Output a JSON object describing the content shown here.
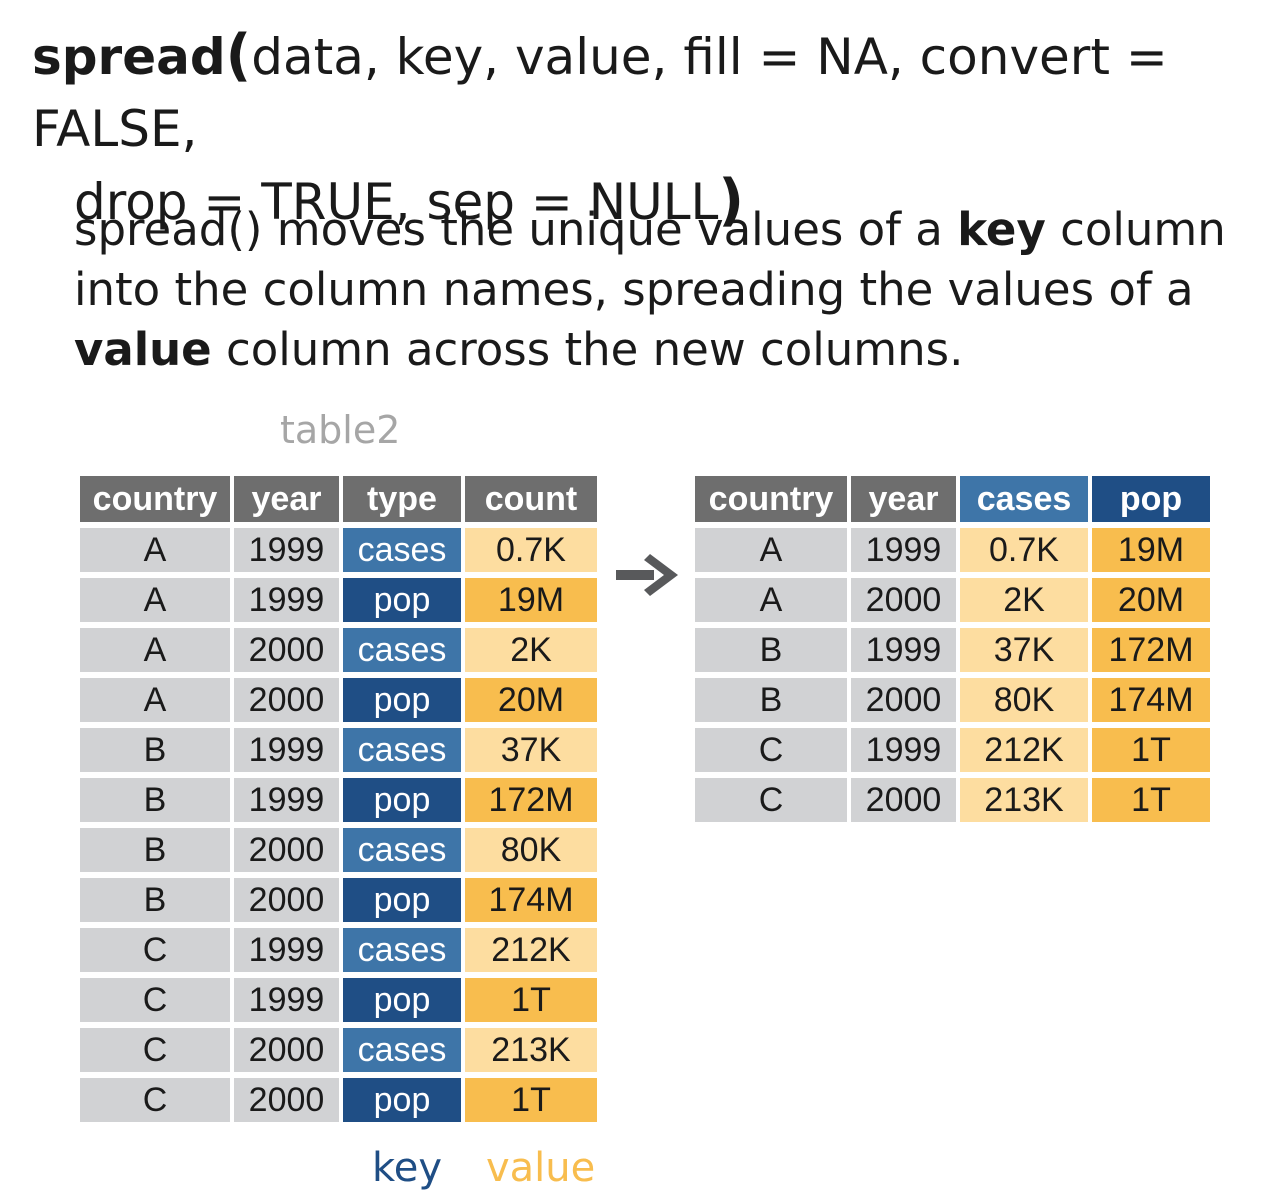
{
  "signature": {
    "function": "spread",
    "open_paren": "(",
    "args_line1": "data, key, value, fill = NA, convert = FALSE,",
    "args_line2": "drop = TRUE, sep = NULL",
    "close_paren": ")"
  },
  "description": {
    "part1": "spread() moves the unique values of a ",
    "bold1": "key",
    "part2": " column into the column names, spreading the values of a ",
    "bold2": "value",
    "part3": " column across the new columns."
  },
  "left_table": {
    "caption": "table2",
    "headers": [
      "country",
      "year",
      "type",
      "count"
    ],
    "rows": [
      [
        "A",
        "1999",
        "cases",
        "0.7K"
      ],
      [
        "A",
        "1999",
        "pop",
        "19M"
      ],
      [
        "A",
        "2000",
        "cases",
        "2K"
      ],
      [
        "A",
        "2000",
        "pop",
        "20M"
      ],
      [
        "B",
        "1999",
        "cases",
        "37K"
      ],
      [
        "B",
        "1999",
        "pop",
        "172M"
      ],
      [
        "B",
        "2000",
        "cases",
        "80K"
      ],
      [
        "B",
        "2000",
        "pop",
        "174M"
      ],
      [
        "C",
        "1999",
        "cases",
        "212K"
      ],
      [
        "C",
        "1999",
        "pop",
        "1T"
      ],
      [
        "C",
        "2000",
        "cases",
        "213K"
      ],
      [
        "C",
        "2000",
        "pop",
        "1T"
      ]
    ],
    "key_label": "key",
    "value_label": "value"
  },
  "right_table": {
    "headers": [
      "country",
      "year",
      "cases",
      "pop"
    ],
    "rows": [
      [
        "A",
        "1999",
        "0.7K",
        "19M"
      ],
      [
        "A",
        "2000",
        "2K",
        "20M"
      ],
      [
        "B",
        "1999",
        "37K",
        "172M"
      ],
      [
        "B",
        "2000",
        "80K",
        "174M"
      ],
      [
        "C",
        "1999",
        "212K",
        "1T"
      ],
      [
        "C",
        "2000",
        "213K",
        "1T"
      ]
    ]
  },
  "colors": {
    "header_gray": "#6e6e6e",
    "cell_gray": "#d1d2d4",
    "cases_blue": "#3e75a8",
    "pop_blue": "#1f4e85",
    "value_light": "#fddda0",
    "value_dark": "#f8bd4e",
    "arrow": "#58595b",
    "caption_gray": "#a6a6a6"
  },
  "icons": {
    "arrow": "right-arrow-icon"
  }
}
